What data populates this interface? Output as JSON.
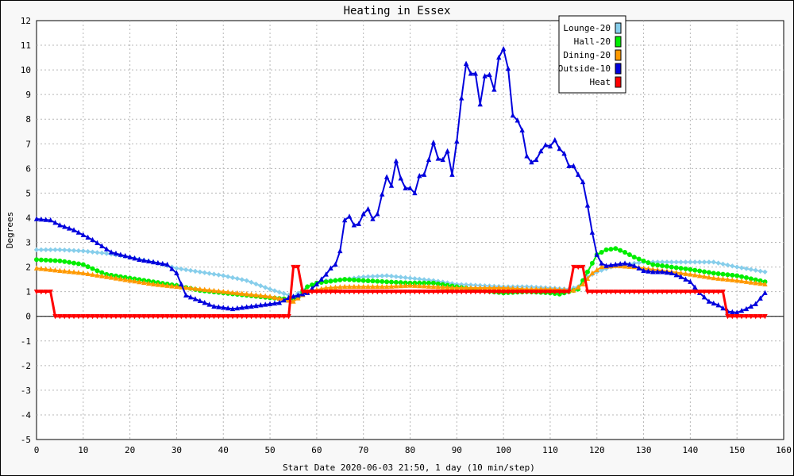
{
  "chart_data": {
    "type": "line",
    "title": "Heating in Essex",
    "xlabel": "Start Date 2020-06-03 21:50, 1 day (10 min/step)",
    "ylabel": "Degrees",
    "xlim": [
      0,
      160
    ],
    "ylim": [
      -5,
      12
    ],
    "x_ticks": [
      0,
      10,
      20,
      30,
      40,
      50,
      60,
      70,
      80,
      90,
      100,
      110,
      120,
      130,
      140,
      150,
      160
    ],
    "y_ticks": [
      -5,
      -4,
      -3,
      -2,
      -1,
      0,
      1,
      2,
      3,
      4,
      5,
      6,
      7,
      8,
      9,
      10,
      11,
      12
    ],
    "grid": true,
    "legend_position": "top-right",
    "series": [
      {
        "name": "Lounge-20",
        "color": "#87ceeb",
        "marker": "diamond",
        "points": [
          [
            0,
            2.7
          ],
          [
            5,
            2.7
          ],
          [
            10,
            2.65
          ],
          [
            15,
            2.55
          ],
          [
            20,
            2.4
          ],
          [
            25,
            2.2
          ],
          [
            30,
            1.95
          ],
          [
            35,
            1.8
          ],
          [
            40,
            1.65
          ],
          [
            45,
            1.45
          ],
          [
            50,
            1.1
          ],
          [
            55,
            0.8
          ],
          [
            58,
            1.2
          ],
          [
            62,
            1.45
          ],
          [
            66,
            1.5
          ],
          [
            70,
            1.6
          ],
          [
            75,
            1.65
          ],
          [
            80,
            1.55
          ],
          [
            85,
            1.45
          ],
          [
            90,
            1.3
          ],
          [
            95,
            1.25
          ],
          [
            100,
            1.2
          ],
          [
            105,
            1.2
          ],
          [
            110,
            1.15
          ],
          [
            114,
            1.1
          ],
          [
            116,
            1.2
          ],
          [
            118,
            1.6
          ],
          [
            120,
            1.8
          ],
          [
            123,
            2.0
          ],
          [
            126,
            2.1
          ],
          [
            130,
            2.2
          ],
          [
            135,
            2.2
          ],
          [
            140,
            2.2
          ],
          [
            145,
            2.2
          ],
          [
            150,
            2.0
          ],
          [
            156,
            1.8
          ]
        ]
      },
      {
        "name": "Hall-20",
        "color": "#00ee00",
        "marker": "circle",
        "points": [
          [
            0,
            2.3
          ],
          [
            5,
            2.25
          ],
          [
            10,
            2.1
          ],
          [
            13,
            1.85
          ],
          [
            15,
            1.7
          ],
          [
            20,
            1.55
          ],
          [
            25,
            1.4
          ],
          [
            30,
            1.25
          ],
          [
            35,
            1.05
          ],
          [
            40,
            0.95
          ],
          [
            45,
            0.85
          ],
          [
            50,
            0.75
          ],
          [
            54,
            0.7
          ],
          [
            56,
            0.75
          ],
          [
            58,
            1.2
          ],
          [
            60,
            1.35
          ],
          [
            64,
            1.45
          ],
          [
            66,
            1.5
          ],
          [
            70,
            1.45
          ],
          [
            75,
            1.4
          ],
          [
            80,
            1.35
          ],
          [
            85,
            1.35
          ],
          [
            90,
            1.2
          ],
          [
            95,
            1.05
          ],
          [
            100,
            0.95
          ],
          [
            105,
            1.0
          ],
          [
            110,
            0.95
          ],
          [
            112,
            0.9
          ],
          [
            114,
            1.0
          ],
          [
            116,
            1.1
          ],
          [
            118,
            1.8
          ],
          [
            120,
            2.5
          ],
          [
            122,
            2.7
          ],
          [
            124,
            2.75
          ],
          [
            126,
            2.6
          ],
          [
            128,
            2.4
          ],
          [
            132,
            2.1
          ],
          [
            136,
            2.0
          ],
          [
            140,
            1.9
          ],
          [
            145,
            1.75
          ],
          [
            150,
            1.65
          ],
          [
            156,
            1.4
          ]
        ]
      },
      {
        "name": "Dining-20",
        "color": "#ff9900",
        "marker": "triangle",
        "points": [
          [
            0,
            1.95
          ],
          [
            5,
            1.85
          ],
          [
            10,
            1.75
          ],
          [
            15,
            1.6
          ],
          [
            20,
            1.45
          ],
          [
            25,
            1.3
          ],
          [
            30,
            1.2
          ],
          [
            35,
            1.1
          ],
          [
            40,
            1.0
          ],
          [
            45,
            0.9
          ],
          [
            50,
            0.8
          ],
          [
            55,
            0.6
          ],
          [
            58,
            1.0
          ],
          [
            62,
            1.15
          ],
          [
            66,
            1.2
          ],
          [
            70,
            1.2
          ],
          [
            75,
            1.2
          ],
          [
            80,
            1.25
          ],
          [
            85,
            1.2
          ],
          [
            90,
            1.15
          ],
          [
            95,
            1.15
          ],
          [
            100,
            1.15
          ],
          [
            105,
            1.1
          ],
          [
            110,
            1.1
          ],
          [
            115,
            1.05
          ],
          [
            117,
            1.3
          ],
          [
            119,
            1.75
          ],
          [
            121,
            2.0
          ],
          [
            124,
            2.05
          ],
          [
            128,
            2.0
          ],
          [
            132,
            1.9
          ],
          [
            136,
            1.8
          ],
          [
            140,
            1.7
          ],
          [
            145,
            1.55
          ],
          [
            150,
            1.45
          ],
          [
            156,
            1.3
          ]
        ]
      },
      {
        "name": "Outside-10",
        "color": "#0000dd",
        "marker": "triangle",
        "points": [
          [
            0,
            3.95
          ],
          [
            3,
            3.9
          ],
          [
            5,
            3.7
          ],
          [
            8,
            3.5
          ],
          [
            10,
            3.3
          ],
          [
            12,
            3.1
          ],
          [
            14,
            2.85
          ],
          [
            16,
            2.6
          ],
          [
            18,
            2.5
          ],
          [
            20,
            2.4
          ],
          [
            22,
            2.3
          ],
          [
            25,
            2.2
          ],
          [
            28,
            2.1
          ],
          [
            30,
            1.75
          ],
          [
            31,
            1.3
          ],
          [
            32,
            0.85
          ],
          [
            34,
            0.7
          ],
          [
            36,
            0.55
          ],
          [
            38,
            0.4
          ],
          [
            40,
            0.35
          ],
          [
            42,
            0.3
          ],
          [
            44,
            0.35
          ],
          [
            46,
            0.4
          ],
          [
            48,
            0.45
          ],
          [
            50,
            0.5
          ],
          [
            52,
            0.55
          ],
          [
            54,
            0.75
          ],
          [
            56,
            0.85
          ],
          [
            58,
            0.95
          ],
          [
            60,
            1.3
          ],
          [
            62,
            1.7
          ],
          [
            63,
            1.95
          ],
          [
            64,
            2.1
          ],
          [
            65,
            2.65
          ],
          [
            66,
            3.9
          ],
          [
            67,
            4.05
          ],
          [
            68,
            3.7
          ],
          [
            69,
            3.75
          ],
          [
            70,
            4.15
          ],
          [
            71,
            4.35
          ],
          [
            72,
            3.95
          ],
          [
            73,
            4.15
          ],
          [
            74,
            4.95
          ],
          [
            75,
            5.65
          ],
          [
            76,
            5.3
          ],
          [
            77,
            6.3
          ],
          [
            78,
            5.6
          ],
          [
            79,
            5.2
          ],
          [
            80,
            5.2
          ],
          [
            81,
            5.0
          ],
          [
            82,
            5.7
          ],
          [
            83,
            5.75
          ],
          [
            84,
            6.35
          ],
          [
            85,
            7.05
          ],
          [
            86,
            6.4
          ],
          [
            87,
            6.35
          ],
          [
            88,
            6.7
          ],
          [
            89,
            5.75
          ],
          [
            90,
            7.1
          ],
          [
            91,
            8.85
          ],
          [
            92,
            10.25
          ],
          [
            93,
            9.85
          ],
          [
            94,
            9.85
          ],
          [
            95,
            8.6
          ],
          [
            96,
            9.75
          ],
          [
            97,
            9.8
          ],
          [
            98,
            9.2
          ],
          [
            99,
            10.5
          ],
          [
            100,
            10.85
          ],
          [
            101,
            10.05
          ],
          [
            102,
            8.15
          ],
          [
            103,
            7.95
          ],
          [
            104,
            7.55
          ],
          [
            105,
            6.5
          ],
          [
            106,
            6.25
          ],
          [
            107,
            6.35
          ],
          [
            108,
            6.7
          ],
          [
            109,
            6.95
          ],
          [
            110,
            6.9
          ],
          [
            111,
            7.15
          ],
          [
            112,
            6.8
          ],
          [
            113,
            6.6
          ],
          [
            114,
            6.1
          ],
          [
            115,
            6.1
          ],
          [
            116,
            5.75
          ],
          [
            117,
            5.45
          ],
          [
            118,
            4.5
          ],
          [
            119,
            3.4
          ],
          [
            120,
            2.5
          ],
          [
            121,
            2.15
          ],
          [
            122,
            2.05
          ],
          [
            124,
            2.1
          ],
          [
            126,
            2.15
          ],
          [
            128,
            2.05
          ],
          [
            130,
            1.85
          ],
          [
            132,
            1.8
          ],
          [
            134,
            1.8
          ],
          [
            136,
            1.75
          ],
          [
            138,
            1.6
          ],
          [
            140,
            1.4
          ],
          [
            142,
            0.95
          ],
          [
            144,
            0.6
          ],
          [
            146,
            0.45
          ],
          [
            148,
            0.2
          ],
          [
            150,
            0.15
          ],
          [
            152,
            0.3
          ],
          [
            154,
            0.5
          ],
          [
            156,
            0.95
          ]
        ]
      },
      {
        "name": "Heat",
        "color": "#ff0000",
        "marker": "triangle-down",
        "points": [
          [
            0,
            1
          ],
          [
            3,
            1
          ],
          [
            4,
            0
          ],
          [
            54,
            0
          ],
          [
            55,
            2
          ],
          [
            56,
            2
          ],
          [
            57,
            1
          ],
          [
            114,
            1
          ],
          [
            115,
            2
          ],
          [
            117,
            2
          ],
          [
            118,
            1
          ],
          [
            147,
            1
          ],
          [
            148,
            0
          ],
          [
            156,
            0
          ]
        ]
      }
    ]
  }
}
